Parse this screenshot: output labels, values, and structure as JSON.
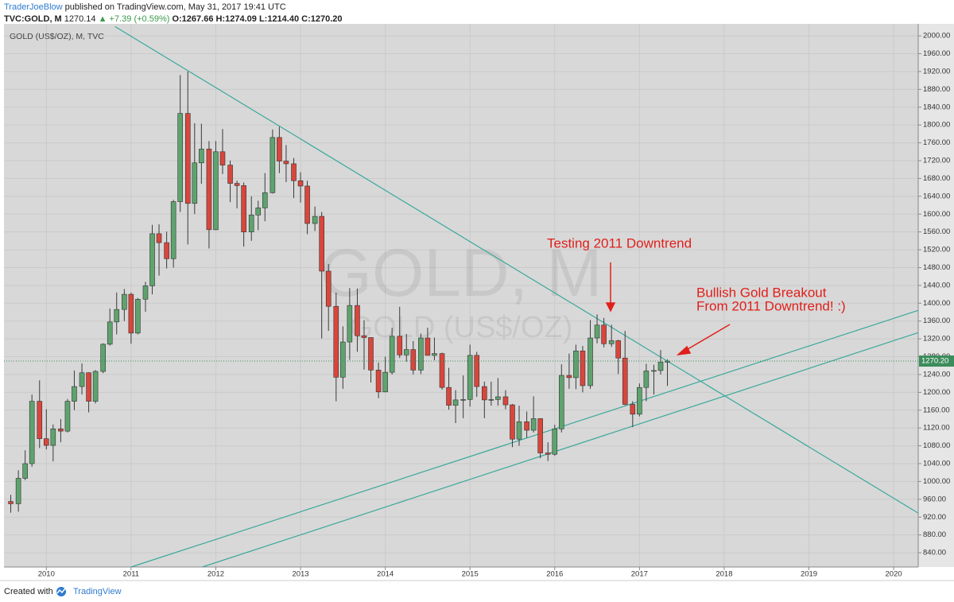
{
  "header": {
    "author": "TraderJoeBlow",
    "published": "published on TradingView.com, May 31, 2017 19:41 UTC",
    "symbol": "TVC:GOLD, M",
    "last": "1270.14",
    "change": "▲ +7.39 (+0.59%)",
    "open": "O:1267.66",
    "high": "H:1274.09",
    "low": "L:1214.40",
    "close": "C:1270.20"
  },
  "footer": {
    "created": "Created with",
    "brand": "TradingView"
  },
  "chart_data": {
    "type": "candlestick",
    "title": "GOLD (US$/OZ), M, TVC",
    "watermark": "GOLD, M",
    "watermark_sub": "GOLD (US$/OZ)",
    "up_color": "#5ea36e",
    "down_color": "#d9463b",
    "grid": true,
    "xlim": [
      2009.5,
      2020.29
    ],
    "ylim": [
      808,
      2027
    ],
    "xticks": [
      2010,
      2011,
      2012,
      2013,
      2014,
      2015,
      2016,
      2017,
      2018,
      2019,
      2020
    ],
    "yticks": [
      {
        "value": 840,
        "label": "840.00"
      },
      {
        "value": 880,
        "label": "880.00"
      },
      {
        "value": 920,
        "label": "920.00"
      },
      {
        "value": 960,
        "label": "960.00"
      },
      {
        "value": 1000,
        "label": "1000.00"
      },
      {
        "value": 1040,
        "label": "1040.00"
      },
      {
        "value": 1080,
        "label": "1080.00"
      },
      {
        "value": 1120,
        "label": "1120.00"
      },
      {
        "value": 1160,
        "label": "1160.00"
      },
      {
        "value": 1200,
        "label": "1200.00"
      },
      {
        "value": 1240,
        "label": "1240.00"
      },
      {
        "value": 1280,
        "label": "1280.00"
      },
      {
        "value": 1320,
        "label": "1320.00"
      },
      {
        "value": 1360,
        "label": "1360.00"
      },
      {
        "value": 1400,
        "label": "1400.00"
      },
      {
        "value": 1440,
        "label": "1440.00"
      },
      {
        "value": 1480,
        "label": "1480.00"
      },
      {
        "value": 1520,
        "label": "1520.00"
      },
      {
        "value": 1560,
        "label": "1560.00"
      },
      {
        "value": 1600,
        "label": "1600.00"
      },
      {
        "value": 1640,
        "label": "1640.00"
      },
      {
        "value": 1680,
        "label": "1680.00"
      },
      {
        "value": 1720,
        "label": "1720.00"
      },
      {
        "value": 1760,
        "label": "1760.00"
      },
      {
        "value": 1800,
        "label": "1800.00"
      },
      {
        "value": 1840,
        "label": "1840.00"
      },
      {
        "value": 1880,
        "label": "1880.00"
      },
      {
        "value": 1920,
        "label": "1920.00"
      },
      {
        "value": 1960,
        "label": "1960.00"
      },
      {
        "value": 2000,
        "label": "2000.00"
      }
    ],
    "last_price": {
      "value": 1270.2,
      "label": "1270.20"
    },
    "trendline_color": "#3aa99a",
    "trendlines": [
      {
        "x": [
          2010.81,
          2020.29
        ],
        "y": [
          2021,
          929
        ]
      },
      {
        "x": [
          2011.0,
          2020.29
        ],
        "y": [
          808,
          1384
        ]
      },
      {
        "x": [
          2011.84,
          2020.29
        ],
        "y": [
          808,
          1334
        ]
      }
    ],
    "annotations": [
      "Testing 2011 Downtrend",
      "Bullish Gold Breakout",
      "From 2011 Downtrend!  :)"
    ],
    "candles": [
      {
        "x": 2009.58,
        "open": 955,
        "high": 970,
        "low": 930,
        "close": 950
      },
      {
        "x": 2009.67,
        "open": 950,
        "high": 1025,
        "low": 932,
        "close": 1007
      },
      {
        "x": 2009.75,
        "open": 1007,
        "high": 1070,
        "low": 1003,
        "close": 1040
      },
      {
        "x": 2009.83,
        "open": 1040,
        "high": 1195,
        "low": 1033,
        "close": 1180
      },
      {
        "x": 2009.92,
        "open": 1180,
        "high": 1227,
        "low": 1075,
        "close": 1096
      },
      {
        "x": 2010.0,
        "open": 1096,
        "high": 1162,
        "low": 1072,
        "close": 1081
      },
      {
        "x": 2010.08,
        "open": 1081,
        "high": 1128,
        "low": 1045,
        "close": 1118
      },
      {
        "x": 2010.17,
        "open": 1118,
        "high": 1140,
        "low": 1088,
        "close": 1113
      },
      {
        "x": 2010.25,
        "open": 1113,
        "high": 1185,
        "low": 1110,
        "close": 1180
      },
      {
        "x": 2010.33,
        "open": 1180,
        "high": 1249,
        "low": 1160,
        "close": 1213
      },
      {
        "x": 2010.42,
        "open": 1213,
        "high": 1265,
        "low": 1195,
        "close": 1244
      },
      {
        "x": 2010.5,
        "open": 1244,
        "high": 1245,
        "low": 1155,
        "close": 1180
      },
      {
        "x": 2010.58,
        "open": 1180,
        "high": 1250,
        "low": 1175,
        "close": 1247
      },
      {
        "x": 2010.67,
        "open": 1247,
        "high": 1310,
        "low": 1243,
        "close": 1308
      },
      {
        "x": 2010.75,
        "open": 1308,
        "high": 1388,
        "low": 1305,
        "close": 1358
      },
      {
        "x": 2010.83,
        "open": 1358,
        "high": 1424,
        "low": 1330,
        "close": 1386
      },
      {
        "x": 2010.92,
        "open": 1386,
        "high": 1432,
        "low": 1360,
        "close": 1420
      },
      {
        "x": 2011.0,
        "open": 1420,
        "high": 1424,
        "low": 1309,
        "close": 1333
      },
      {
        "x": 2011.08,
        "open": 1333,
        "high": 1412,
        "low": 1330,
        "close": 1409
      },
      {
        "x": 2011.17,
        "open": 1409,
        "high": 1448,
        "low": 1381,
        "close": 1439
      },
      {
        "x": 2011.25,
        "open": 1439,
        "high": 1576,
        "low": 1420,
        "close": 1556
      },
      {
        "x": 2011.33,
        "open": 1556,
        "high": 1577,
        "low": 1462,
        "close": 1536
      },
      {
        "x": 2011.42,
        "open": 1536,
        "high": 1561,
        "low": 1478,
        "close": 1500
      },
      {
        "x": 2011.5,
        "open": 1500,
        "high": 1632,
        "low": 1480,
        "close": 1628
      },
      {
        "x": 2011.58,
        "open": 1628,
        "high": 1912,
        "low": 1605,
        "close": 1826
      },
      {
        "x": 2011.67,
        "open": 1826,
        "high": 1920,
        "low": 1532,
        "close": 1624
      },
      {
        "x": 2011.75,
        "open": 1624,
        "high": 1804,
        "low": 1600,
        "close": 1715
      },
      {
        "x": 2011.83,
        "open": 1715,
        "high": 1803,
        "low": 1668,
        "close": 1746
      },
      {
        "x": 2011.92,
        "open": 1746,
        "high": 1764,
        "low": 1523,
        "close": 1565
      },
      {
        "x": 2012.0,
        "open": 1565,
        "high": 1764,
        "low": 1564,
        "close": 1740
      },
      {
        "x": 2012.08,
        "open": 1740,
        "high": 1791,
        "low": 1690,
        "close": 1710
      },
      {
        "x": 2012.17,
        "open": 1710,
        "high": 1720,
        "low": 1627,
        "close": 1669
      },
      {
        "x": 2012.25,
        "open": 1669,
        "high": 1675,
        "low": 1613,
        "close": 1664
      },
      {
        "x": 2012.33,
        "open": 1664,
        "high": 1671,
        "low": 1527,
        "close": 1560
      },
      {
        "x": 2012.42,
        "open": 1560,
        "high": 1640,
        "low": 1540,
        "close": 1598
      },
      {
        "x": 2012.5,
        "open": 1598,
        "high": 1630,
        "low": 1564,
        "close": 1614
      },
      {
        "x": 2012.58,
        "open": 1614,
        "high": 1692,
        "low": 1584,
        "close": 1648
      },
      {
        "x": 2012.67,
        "open": 1648,
        "high": 1790,
        "low": 1646,
        "close": 1772
      },
      {
        "x": 2012.75,
        "open": 1772,
        "high": 1796,
        "low": 1692,
        "close": 1719
      },
      {
        "x": 2012.83,
        "open": 1719,
        "high": 1755,
        "low": 1672,
        "close": 1713
      },
      {
        "x": 2012.92,
        "open": 1713,
        "high": 1726,
        "low": 1636,
        "close": 1675
      },
      {
        "x": 2013.0,
        "open": 1675,
        "high": 1694,
        "low": 1626,
        "close": 1663
      },
      {
        "x": 2013.08,
        "open": 1663,
        "high": 1675,
        "low": 1555,
        "close": 1579
      },
      {
        "x": 2013.17,
        "open": 1579,
        "high": 1617,
        "low": 1562,
        "close": 1595
      },
      {
        "x": 2013.25,
        "open": 1595,
        "high": 1605,
        "low": 1321,
        "close": 1472
      },
      {
        "x": 2013.33,
        "open": 1472,
        "high": 1488,
        "low": 1338,
        "close": 1393
      },
      {
        "x": 2013.42,
        "open": 1393,
        "high": 1424,
        "low": 1180,
        "close": 1234
      },
      {
        "x": 2013.5,
        "open": 1234,
        "high": 1348,
        "low": 1208,
        "close": 1313
      },
      {
        "x": 2013.58,
        "open": 1313,
        "high": 1434,
        "low": 1273,
        "close": 1395
      },
      {
        "x": 2013.67,
        "open": 1395,
        "high": 1433,
        "low": 1291,
        "close": 1327
      },
      {
        "x": 2013.75,
        "open": 1327,
        "high": 1362,
        "low": 1251,
        "close": 1323
      },
      {
        "x": 2013.83,
        "open": 1323,
        "high": 1323,
        "low": 1222,
        "close": 1250
      },
      {
        "x": 2013.92,
        "open": 1250,
        "high": 1267,
        "low": 1187,
        "close": 1201
      },
      {
        "x": 2014.0,
        "open": 1201,
        "high": 1280,
        "low": 1200,
        "close": 1245
      },
      {
        "x": 2014.08,
        "open": 1245,
        "high": 1345,
        "low": 1240,
        "close": 1326
      },
      {
        "x": 2014.17,
        "open": 1326,
        "high": 1392,
        "low": 1277,
        "close": 1284
      },
      {
        "x": 2014.25,
        "open": 1284,
        "high": 1331,
        "low": 1269,
        "close": 1296
      },
      {
        "x": 2014.33,
        "open": 1296,
        "high": 1315,
        "low": 1240,
        "close": 1250
      },
      {
        "x": 2014.42,
        "open": 1250,
        "high": 1332,
        "low": 1241,
        "close": 1322
      },
      {
        "x": 2014.5,
        "open": 1322,
        "high": 1345,
        "low": 1283,
        "close": 1283
      },
      {
        "x": 2014.58,
        "open": 1283,
        "high": 1323,
        "low": 1272,
        "close": 1287
      },
      {
        "x": 2014.67,
        "open": 1287,
        "high": 1289,
        "low": 1206,
        "close": 1211
      },
      {
        "x": 2014.75,
        "open": 1211,
        "high": 1255,
        "low": 1161,
        "close": 1171
      },
      {
        "x": 2014.83,
        "open": 1171,
        "high": 1205,
        "low": 1131,
        "close": 1183
      },
      {
        "x": 2014.92,
        "open": 1183,
        "high": 1238,
        "low": 1142,
        "close": 1184
      },
      {
        "x": 2015.0,
        "open": 1184,
        "high": 1307,
        "low": 1168,
        "close": 1283
      },
      {
        "x": 2015.08,
        "open": 1283,
        "high": 1291,
        "low": 1190,
        "close": 1213
      },
      {
        "x": 2015.17,
        "open": 1213,
        "high": 1224,
        "low": 1142,
        "close": 1183
      },
      {
        "x": 2015.25,
        "open": 1183,
        "high": 1224,
        "low": 1170,
        "close": 1184
      },
      {
        "x": 2015.33,
        "open": 1184,
        "high": 1232,
        "low": 1170,
        "close": 1190
      },
      {
        "x": 2015.42,
        "open": 1190,
        "high": 1205,
        "low": 1162,
        "close": 1172
      },
      {
        "x": 2015.5,
        "open": 1172,
        "high": 1174,
        "low": 1077,
        "close": 1095
      },
      {
        "x": 2015.58,
        "open": 1095,
        "high": 1170,
        "low": 1080,
        "close": 1134
      },
      {
        "x": 2015.67,
        "open": 1134,
        "high": 1157,
        "low": 1098,
        "close": 1115
      },
      {
        "x": 2015.75,
        "open": 1115,
        "high": 1191,
        "low": 1110,
        "close": 1141
      },
      {
        "x": 2015.83,
        "open": 1141,
        "high": 1142,
        "low": 1052,
        "close": 1064
      },
      {
        "x": 2015.92,
        "open": 1064,
        "high": 1088,
        "low": 1046,
        "close": 1061
      },
      {
        "x": 2016.0,
        "open": 1061,
        "high": 1127,
        "low": 1058,
        "close": 1118
      },
      {
        "x": 2016.08,
        "open": 1118,
        "high": 1263,
        "low": 1110,
        "close": 1238
      },
      {
        "x": 2016.17,
        "open": 1238,
        "high": 1287,
        "low": 1208,
        "close": 1233
      },
      {
        "x": 2016.25,
        "open": 1233,
        "high": 1307,
        "low": 1207,
        "close": 1293
      },
      {
        "x": 2016.33,
        "open": 1293,
        "high": 1304,
        "low": 1200,
        "close": 1215
      },
      {
        "x": 2016.42,
        "open": 1215,
        "high": 1362,
        "low": 1208,
        "close": 1322
      },
      {
        "x": 2016.5,
        "open": 1322,
        "high": 1375,
        "low": 1310,
        "close": 1351
      },
      {
        "x": 2016.58,
        "open": 1351,
        "high": 1367,
        "low": 1301,
        "close": 1309
      },
      {
        "x": 2016.67,
        "open": 1309,
        "high": 1352,
        "low": 1302,
        "close": 1316
      },
      {
        "x": 2016.75,
        "open": 1316,
        "high": 1318,
        "low": 1241,
        "close": 1277
      },
      {
        "x": 2016.83,
        "open": 1277,
        "high": 1338,
        "low": 1171,
        "close": 1173
      },
      {
        "x": 2016.92,
        "open": 1173,
        "high": 1180,
        "low": 1122,
        "close": 1151
      },
      {
        "x": 2017.0,
        "open": 1151,
        "high": 1220,
        "low": 1146,
        "close": 1211
      },
      {
        "x": 2017.08,
        "open": 1211,
        "high": 1264,
        "low": 1180,
        "close": 1248
      },
      {
        "x": 2017.17,
        "open": 1248,
        "high": 1262,
        "low": 1195,
        "close": 1249
      },
      {
        "x": 2017.25,
        "open": 1249,
        "high": 1295,
        "low": 1240,
        "close": 1268
      },
      {
        "x": 2017.33,
        "open": 1267.66,
        "high": 1274.09,
        "low": 1214.4,
        "close": 1270.2
      }
    ]
  }
}
